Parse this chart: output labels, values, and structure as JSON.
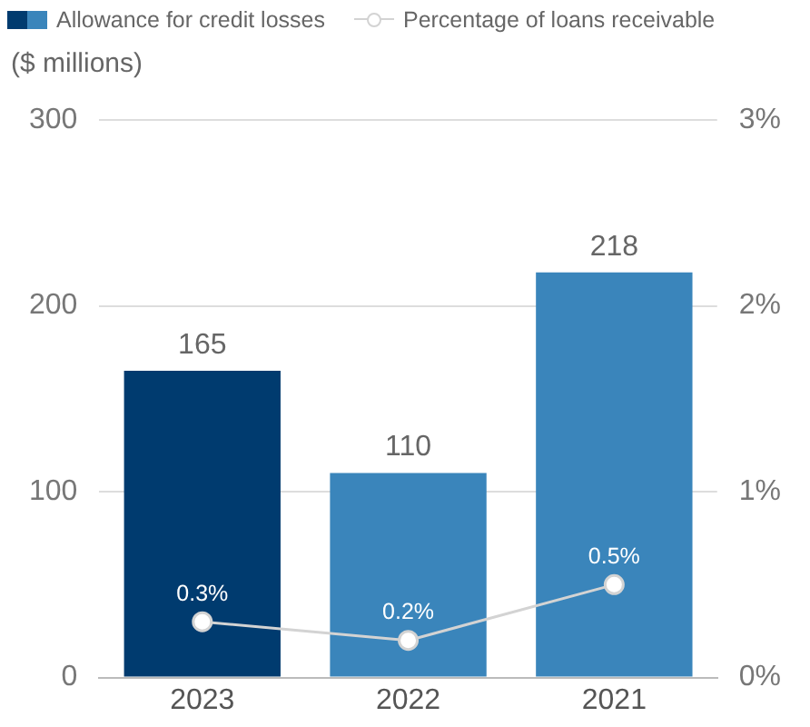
{
  "chart_data": {
    "type": "bar",
    "ylabel": "($ millions)",
    "categories": [
      "2023",
      "2022",
      "2021"
    ],
    "series": [
      {
        "name": "Allowance for credit losses",
        "colors": [
          "#003b6f",
          "#3a85bb",
          "#3a85bb"
        ],
        "color": "#3a85bb",
        "values": [
          165,
          110,
          218
        ],
        "value_labels": [
          "165",
          "110",
          "218"
        ]
      },
      {
        "name": "Percentage of loans receivable",
        "type": "line",
        "axis": "y2",
        "color": "#d3d3d3",
        "values": [
          0.3,
          0.2,
          0.5
        ],
        "value_labels": [
          "0.3%",
          "0.2%",
          "0.5%"
        ]
      }
    ],
    "ylim": [
      0,
      300
    ],
    "yticks": [
      0,
      100,
      200,
      300
    ],
    "y2lim": [
      0,
      3
    ],
    "y2ticks": [
      {
        "value": 0,
        "label": "0%"
      },
      {
        "value": 1,
        "label": "1%"
      },
      {
        "value": 2,
        "label": "2%"
      },
      {
        "value": 3,
        "label": "3%"
      }
    ],
    "grid": "y",
    "legend": "top left",
    "marker": "circle"
  }
}
